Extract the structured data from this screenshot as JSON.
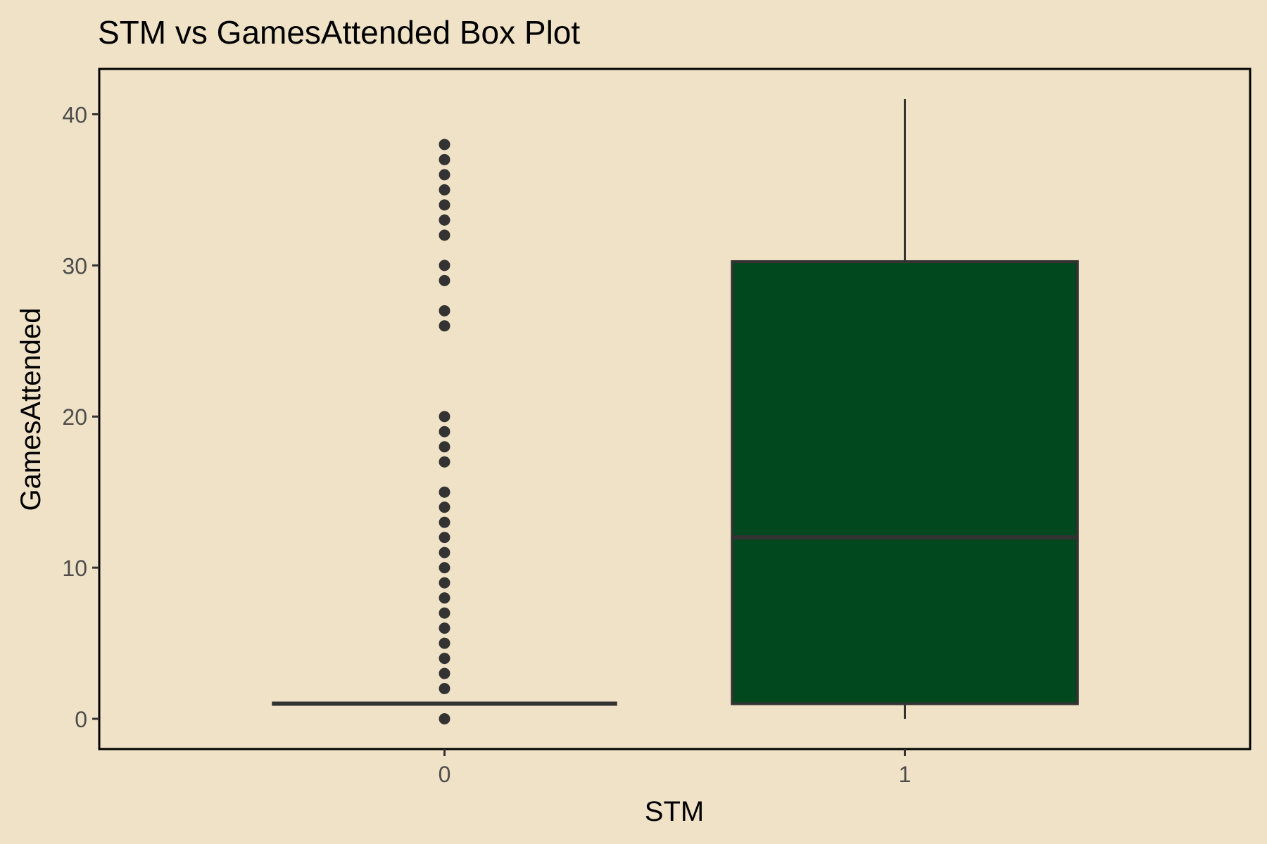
{
  "chart_data": {
    "type": "box",
    "title": "STM vs GamesAttended Box Plot",
    "xlabel": "STM",
    "ylabel": "GamesAttended",
    "categories": [
      "0",
      "1"
    ],
    "ylim": [
      -2,
      43
    ],
    "y_ticks": [
      0,
      10,
      20,
      30,
      40
    ],
    "grid": false,
    "fill_color": "#02481E",
    "line_color": "#333333",
    "background_color": "#F0E2C6",
    "boxes": [
      {
        "category": "0",
        "min": 1,
        "q1": 1,
        "median": 1,
        "q3": 1,
        "max": 1,
        "outliers": [
          0,
          2,
          3,
          4,
          5,
          6,
          7,
          8,
          9,
          10,
          11,
          12,
          13,
          14,
          15,
          17,
          18,
          19,
          20,
          26,
          27,
          29,
          30,
          32,
          33,
          34,
          35,
          36,
          37,
          38
        ]
      },
      {
        "category": "1",
        "min": 0,
        "q1": 1,
        "median": 12,
        "q3": 30.25,
        "max": 41,
        "outliers": []
      }
    ]
  }
}
